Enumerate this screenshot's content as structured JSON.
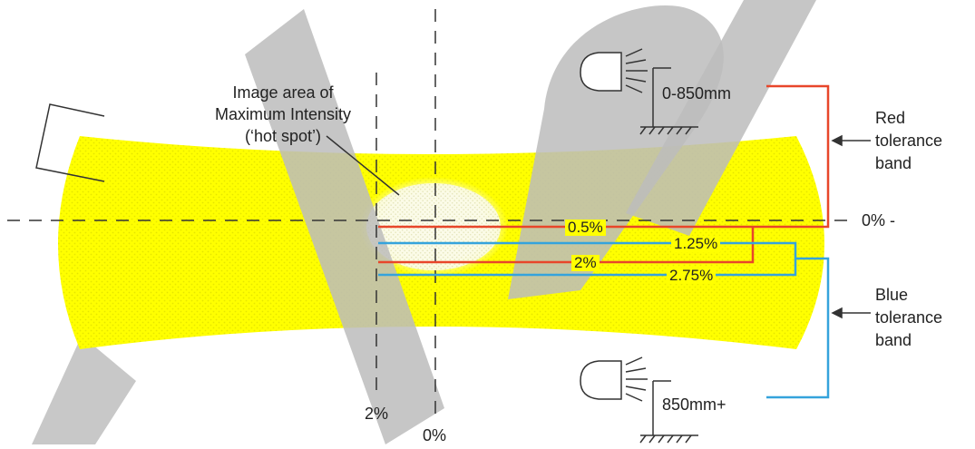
{
  "diagram": {
    "hot_spot_label": [
      "Image area of",
      "Maximum Intensity",
      "(‘hot spot’)"
    ],
    "lamp_near_label": "0-850mm",
    "lamp_far_label": "850mm+",
    "red_band_label": [
      "Red",
      "tolerance",
      "band"
    ],
    "blue_band_label": [
      "Blue",
      "tolerance",
      "band"
    ],
    "zero_h_label": "0% -",
    "axis_2pct_label": "2%",
    "axis_0pct_label": "0%",
    "red_lines": [
      "0.5%",
      "2%"
    ],
    "blue_lines": [
      "1.25%",
      "2.75%"
    ],
    "colors": {
      "beam_fill": "#ffff00",
      "red_line": "#e8462a",
      "blue_line": "#35a3dc",
      "watermark": "#c8c8c8",
      "dash": "#333333"
    },
    "icons": [
      "headlamp-icon",
      "ground-hatch-icon",
      "arrow-left-icon"
    ]
  }
}
